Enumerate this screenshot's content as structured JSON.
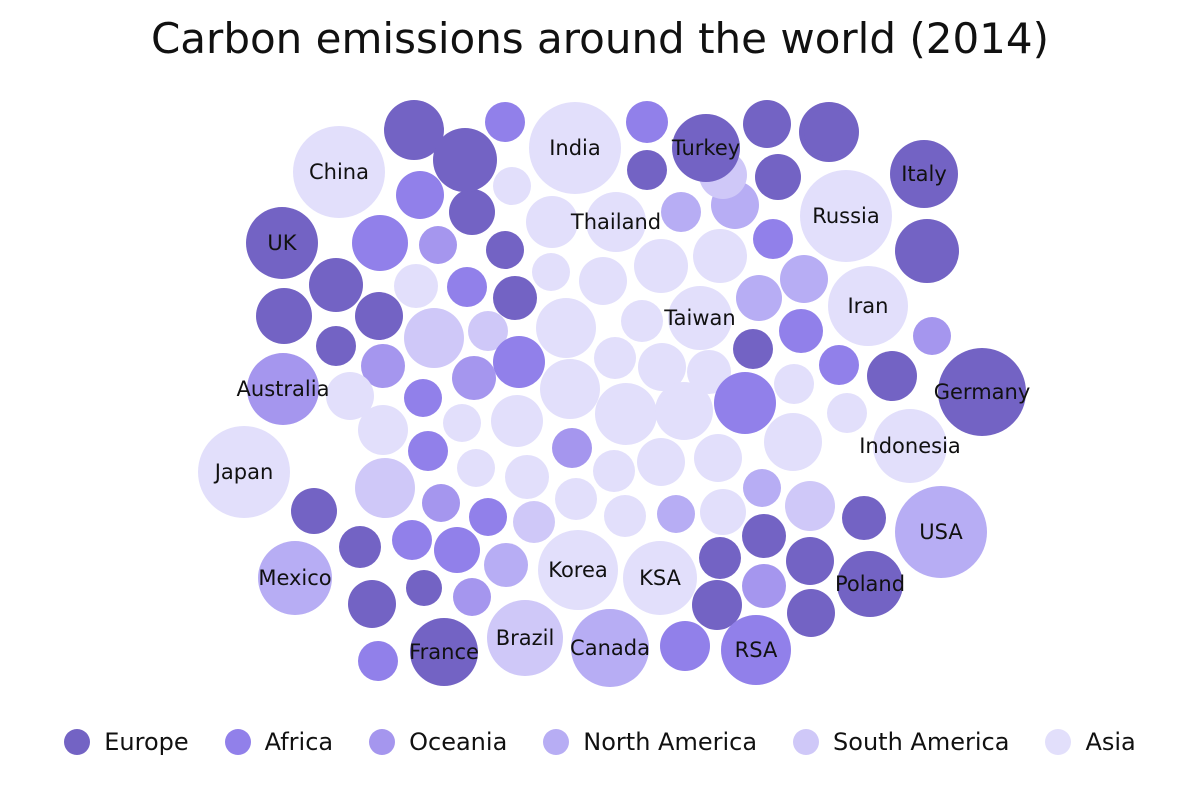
{
  "chart_data": {
    "type": "bubble",
    "title": "Carbon emissions around the world (2014)",
    "legend_position": "bottom",
    "categories": [
      {
        "name": "Europe",
        "color": "#7363C4"
      },
      {
        "name": "Africa",
        "color": "#9180EA"
      },
      {
        "name": "Oceania",
        "color": "#A596EE"
      },
      {
        "name": "North America",
        "color": "#B7ADF4"
      },
      {
        "name": "South America",
        "color": "#CFC8F8"
      },
      {
        "name": "Asia",
        "color": "#E2DFFB"
      }
    ],
    "labeled_bubbles": [
      {
        "label": "China",
        "category": "Asia",
        "size": 46
      },
      {
        "label": "India",
        "category": "Asia",
        "size": 46
      },
      {
        "label": "Turkey",
        "category": "Europe",
        "size": 34
      },
      {
        "label": "Italy",
        "category": "Europe",
        "size": 34
      },
      {
        "label": "Thailand",
        "category": "Asia",
        "size": 30
      },
      {
        "label": "Russia",
        "category": "Asia",
        "size": 46
      },
      {
        "label": "UK",
        "category": "Europe",
        "size": 36
      },
      {
        "label": "Iran",
        "category": "Asia",
        "size": 40
      },
      {
        "label": "Taiwan",
        "category": "Asia",
        "size": 32
      },
      {
        "label": "Australia",
        "category": "Oceania",
        "size": 36
      },
      {
        "label": "Germany",
        "category": "Europe",
        "size": 44
      },
      {
        "label": "Indonesia",
        "category": "Asia",
        "size": 37
      },
      {
        "label": "Japan",
        "category": "Asia",
        "size": 46
      },
      {
        "label": "USA",
        "category": "North America",
        "size": 46
      },
      {
        "label": "Mexico",
        "category": "North America",
        "size": 37
      },
      {
        "label": "Korea",
        "category": "Asia",
        "size": 40
      },
      {
        "label": "KSA",
        "category": "Asia",
        "size": 37
      },
      {
        "label": "Poland",
        "category": "Europe",
        "size": 33
      },
      {
        "label": "Brazil",
        "category": "South America",
        "size": 38
      },
      {
        "label": "Canada",
        "category": "North America",
        "size": 39
      },
      {
        "label": "France",
        "category": "Europe",
        "size": 34
      },
      {
        "label": "RSA",
        "category": "Africa",
        "size": 35
      }
    ],
    "unlabeled_bubbles": [
      {
        "category": "Europe",
        "size": 30
      },
      {
        "category": "Africa",
        "size": 20
      },
      {
        "category": "Africa",
        "size": 21
      },
      {
        "category": "Europe",
        "size": 24
      },
      {
        "category": "Europe",
        "size": 30
      },
      {
        "category": "Europe",
        "size": 24
      },
      {
        "category": "Africa",
        "size": 24
      },
      {
        "category": "Europe",
        "size": 20
      },
      {
        "category": "Asia",
        "size": 19
      },
      {
        "category": "Europe",
        "size": 23
      },
      {
        "category": "North America",
        "size": 20
      },
      {
        "category": "Africa",
        "size": 28
      },
      {
        "category": "Oceania",
        "size": 19
      },
      {
        "category": "Asia",
        "size": 26
      },
      {
        "category": "Europe",
        "size": 23
      },
      {
        "category": "North America",
        "size": 24
      },
      {
        "category": "South America",
        "size": 24
      },
      {
        "category": "Asia",
        "size": 27
      },
      {
        "category": "Europe",
        "size": 32
      },
      {
        "category": "Africa",
        "size": 20
      },
      {
        "category": "Asia",
        "size": 27
      },
      {
        "category": "Asia",
        "size": 24
      },
      {
        "category": "Europe",
        "size": 27
      },
      {
        "category": "Asia",
        "size": 19
      },
      {
        "category": "North America",
        "size": 24
      },
      {
        "category": "Europe",
        "size": 19
      },
      {
        "category": "Asia",
        "size": 22
      },
      {
        "category": "Africa",
        "size": 20
      },
      {
        "category": "Europe",
        "size": 28
      },
      {
        "category": "North America",
        "size": 23
      },
      {
        "category": "Europe",
        "size": 24
      },
      {
        "category": "Europe",
        "size": 22
      },
      {
        "category": "South America",
        "size": 30
      },
      {
        "category": "South America",
        "size": 20
      },
      {
        "category": "Asia",
        "size": 30
      },
      {
        "category": "Asia",
        "size": 21
      },
      {
        "category": "Asia",
        "size": 21
      },
      {
        "category": "Europe",
        "size": 20
      },
      {
        "category": "Africa",
        "size": 22
      },
      {
        "category": "Oceania",
        "size": 22
      },
      {
        "category": "Europe",
        "size": 20
      },
      {
        "category": "Europe",
        "size": 25
      },
      {
        "category": "Africa",
        "size": 20
      },
      {
        "category": "Oceania",
        "size": 19
      },
      {
        "category": "Asia",
        "size": 24
      },
      {
        "category": "Asia",
        "size": 22
      },
      {
        "category": "Asia",
        "size": 30
      },
      {
        "category": "Asia",
        "size": 20
      },
      {
        "category": "Africa",
        "size": 26
      },
      {
        "category": "Oceania",
        "size": 22
      },
      {
        "category": "Asia",
        "size": 24
      },
      {
        "category": "Africa",
        "size": 19
      },
      {
        "category": "Africa",
        "size": 31
      },
      {
        "category": "Asia",
        "size": 19
      },
      {
        "category": "Asia",
        "size": 31
      },
      {
        "category": "Asia",
        "size": 26
      },
      {
        "category": "Asia",
        "size": 29
      },
      {
        "category": "Asia",
        "size": 20
      },
      {
        "category": "Asia",
        "size": 29
      },
      {
        "category": "Asia",
        "size": 25
      },
      {
        "category": "Africa",
        "size": 20
      },
      {
        "category": "Oceania",
        "size": 20
      },
      {
        "category": "Asia",
        "size": 24
      },
      {
        "category": "Asia",
        "size": 24
      },
      {
        "category": "South America",
        "size": 30
      },
      {
        "category": "Europe",
        "size": 23
      },
      {
        "category": "Asia",
        "size": 19
      },
      {
        "category": "Asia",
        "size": 22
      },
      {
        "category": "Asia",
        "size": 21
      },
      {
        "category": "Oceania",
        "size": 19
      },
      {
        "category": "Asia",
        "size": 21
      },
      {
        "category": "North America",
        "size": 19
      },
      {
        "category": "South America",
        "size": 25
      },
      {
        "category": "Europe",
        "size": 22
      },
      {
        "category": "Africa",
        "size": 19
      },
      {
        "category": "South America",
        "size": 21
      },
      {
        "category": "Asia",
        "size": 21
      },
      {
        "category": "North America",
        "size": 19
      },
      {
        "category": "Asia",
        "size": 23
      },
      {
        "category": "Europe",
        "size": 22
      },
      {
        "category": "Europe",
        "size": 21
      },
      {
        "category": "Africa",
        "size": 20
      },
      {
        "category": "Africa",
        "size": 23
      },
      {
        "category": "North America",
        "size": 22
      },
      {
        "category": "Europe",
        "size": 21
      },
      {
        "category": "Oceania",
        "size": 19
      },
      {
        "category": "Oceania",
        "size": 22
      },
      {
        "category": "Europe",
        "size": 24
      },
      {
        "category": "Europe",
        "size": 24
      },
      {
        "category": "Europe",
        "size": 18
      },
      {
        "category": "Europe",
        "size": 25
      },
      {
        "category": "Europe",
        "size": 24
      },
      {
        "category": "Africa",
        "size": 20
      },
      {
        "category": "Africa",
        "size": 25
      },
      {
        "category": "Europe",
        "size": 24
      },
      {
        "category": "Europe",
        "size": 32
      }
    ]
  }
}
